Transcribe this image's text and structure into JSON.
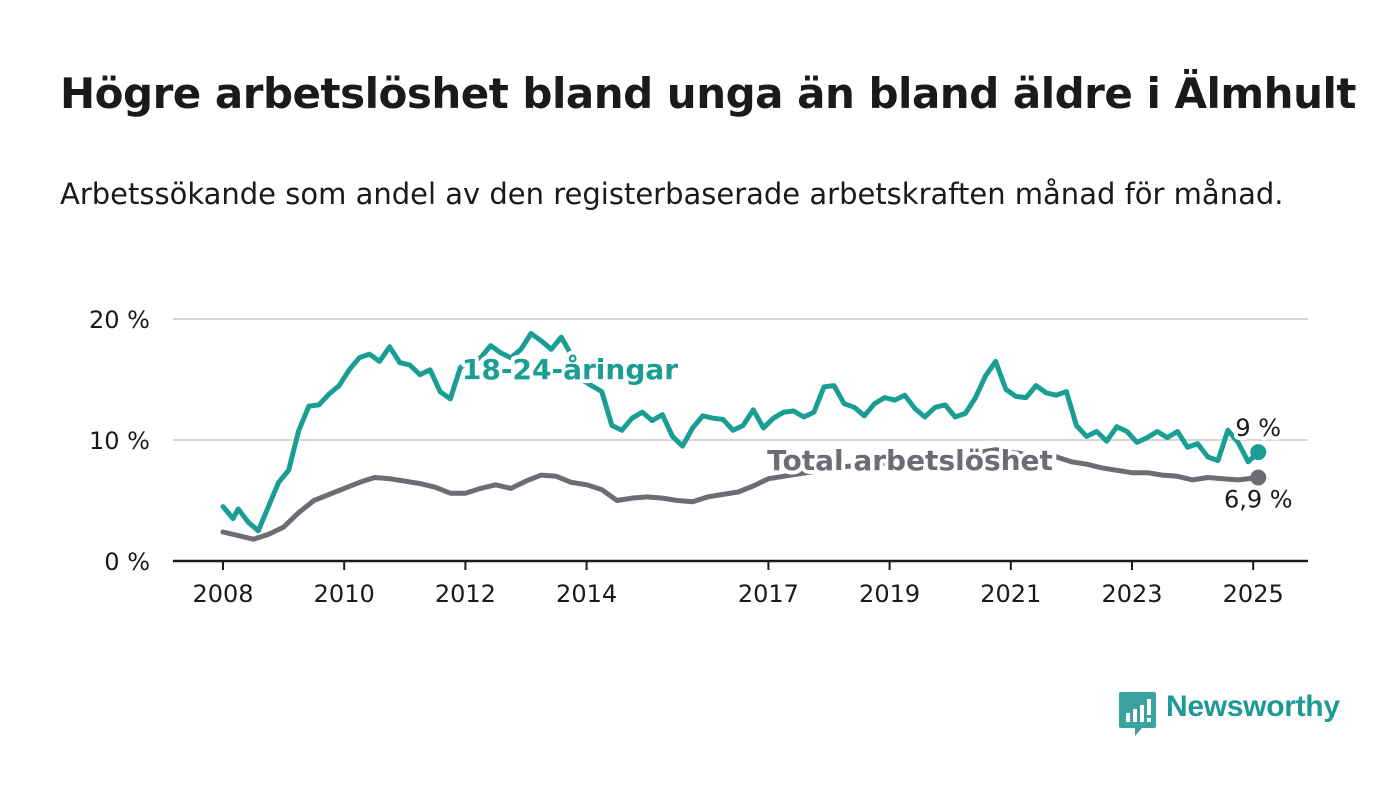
{
  "title": "Högre arbetslöshet bland unga än bland äldre i Älmhult",
  "subtitle": "Arbetssökande som andel av den registerbaserade arbetskraften månad för månad.",
  "logo_text": "Newsworthy",
  "colors": {
    "young": "#1a9e94",
    "total": "#6e6b73",
    "grid": "#d6d6d6",
    "axis": "#1a1a1a",
    "logo": "#1d9a96"
  },
  "chart_data": {
    "type": "line",
    "title": "Högre arbetslöshet bland unga än bland äldre i Älmhult",
    "subtitle": "Arbetssökande som andel av den registerbaserade arbetskraften månad för månad.",
    "xlabel": "",
    "ylabel": "",
    "x_range": [
      "2008-01",
      "2025-03"
    ],
    "ylim": [
      0,
      20
    ],
    "y_ticks": [
      0,
      10,
      20
    ],
    "y_tick_labels": [
      "0 %",
      "10 %",
      "20 %"
    ],
    "x_ticks": [
      2008,
      2010,
      2012,
      2014,
      2017,
      2019,
      2021,
      2023,
      2025
    ],
    "x_tick_labels": [
      "2008",
      "2010",
      "2012",
      "2014",
      "2017",
      "2019",
      "2021",
      "2023",
      "2025"
    ],
    "grid": true,
    "legend": "inline labels",
    "series": [
      {
        "name": "18-24-åringar",
        "end_label": "9 %",
        "points": [
          [
            "2008-01",
            4.5
          ],
          [
            "2008-03",
            3.5
          ],
          [
            "2008-04",
            4.3
          ],
          [
            "2008-06",
            3.2
          ],
          [
            "2008-08",
            2.5
          ],
          [
            "2008-10",
            4.5
          ],
          [
            "2008-12",
            6.5
          ],
          [
            "2009-02",
            7.5
          ],
          [
            "2009-04",
            10.8
          ],
          [
            "2009-06",
            12.8
          ],
          [
            "2009-08",
            12.9
          ],
          [
            "2009-10",
            13.8
          ],
          [
            "2009-12",
            14.5
          ],
          [
            "2010-02",
            15.8
          ],
          [
            "2010-04",
            16.8
          ],
          [
            "2010-06",
            17.1
          ],
          [
            "2010-08",
            16.5
          ],
          [
            "2010-10",
            17.7
          ],
          [
            "2010-12",
            16.4
          ],
          [
            "2011-02",
            16.2
          ],
          [
            "2011-04",
            15.4
          ],
          [
            "2011-06",
            15.8
          ],
          [
            "2011-08",
            14.0
          ],
          [
            "2011-10",
            13.4
          ],
          [
            "2011-12",
            16.0
          ],
          [
            "2012-02",
            16.5
          ],
          [
            "2012-04",
            16.8
          ],
          [
            "2012-06",
            17.8
          ],
          [
            "2012-08",
            17.2
          ],
          [
            "2012-10",
            16.8
          ],
          [
            "2012-12",
            17.5
          ],
          [
            "2013-02",
            18.8
          ],
          [
            "2013-04",
            18.2
          ],
          [
            "2013-06",
            17.5
          ],
          [
            "2013-08",
            18.5
          ],
          [
            "2013-10",
            17.0
          ],
          [
            "2013-12",
            15.0
          ],
          [
            "2014-02",
            14.5
          ],
          [
            "2014-04",
            14.0
          ],
          [
            "2014-06",
            11.2
          ],
          [
            "2014-08",
            10.8
          ],
          [
            "2014-10",
            11.8
          ],
          [
            "2014-12",
            12.3
          ],
          [
            "2015-02",
            11.6
          ],
          [
            "2015-04",
            12.1
          ],
          [
            "2015-06",
            10.3
          ],
          [
            "2015-08",
            9.5
          ],
          [
            "2015-10",
            11.0
          ],
          [
            "2015-12",
            12.0
          ],
          [
            "2016-02",
            11.8
          ],
          [
            "2016-04",
            11.7
          ],
          [
            "2016-06",
            10.8
          ],
          [
            "2016-08",
            11.2
          ],
          [
            "2016-10",
            12.5
          ],
          [
            "2016-12",
            11.0
          ],
          [
            "2017-02",
            11.8
          ],
          [
            "2017-04",
            12.3
          ],
          [
            "2017-06",
            12.4
          ],
          [
            "2017-08",
            11.9
          ],
          [
            "2017-10",
            12.3
          ],
          [
            "2017-12",
            14.4
          ],
          [
            "2018-02",
            14.5
          ],
          [
            "2018-04",
            13.0
          ],
          [
            "2018-06",
            12.7
          ],
          [
            "2018-08",
            12.0
          ],
          [
            "2018-10",
            13.0
          ],
          [
            "2018-12",
            13.5
          ],
          [
            "2019-02",
            13.3
          ],
          [
            "2019-04",
            13.7
          ],
          [
            "2019-06",
            12.6
          ],
          [
            "2019-08",
            11.9
          ],
          [
            "2019-10",
            12.7
          ],
          [
            "2019-12",
            12.9
          ],
          [
            "2020-02",
            11.9
          ],
          [
            "2020-04",
            12.2
          ],
          [
            "2020-06",
            13.5
          ],
          [
            "2020-08",
            15.3
          ],
          [
            "2020-10",
            16.5
          ],
          [
            "2020-12",
            14.2
          ],
          [
            "2021-02",
            13.6
          ],
          [
            "2021-04",
            13.5
          ],
          [
            "2021-06",
            14.5
          ],
          [
            "2021-08",
            13.9
          ],
          [
            "2021-10",
            13.7
          ],
          [
            "2021-12",
            14.0
          ],
          [
            "2022-02",
            11.2
          ],
          [
            "2022-04",
            10.3
          ],
          [
            "2022-06",
            10.7
          ],
          [
            "2022-08",
            9.9
          ],
          [
            "2022-10",
            11.1
          ],
          [
            "2022-12",
            10.7
          ],
          [
            "2023-02",
            9.8
          ],
          [
            "2023-04",
            10.2
          ],
          [
            "2023-06",
            10.7
          ],
          [
            "2023-08",
            10.2
          ],
          [
            "2023-10",
            10.7
          ],
          [
            "2023-12",
            9.4
          ],
          [
            "2024-02",
            9.7
          ],
          [
            "2024-04",
            8.6
          ],
          [
            "2024-06",
            8.3
          ],
          [
            "2024-08",
            10.8
          ],
          [
            "2024-10",
            9.8
          ],
          [
            "2024-12",
            8.2
          ],
          [
            "2025-02",
            9.0
          ]
        ]
      },
      {
        "name": "Total arbetslöshet",
        "end_label": "6,9 %",
        "points": [
          [
            "2008-01",
            2.4
          ],
          [
            "2008-04",
            2.1
          ],
          [
            "2008-07",
            1.8
          ],
          [
            "2008-10",
            2.2
          ],
          [
            "2009-01",
            2.8
          ],
          [
            "2009-04",
            4.0
          ],
          [
            "2009-07",
            5.0
          ],
          [
            "2009-10",
            5.5
          ],
          [
            "2010-01",
            6.0
          ],
          [
            "2010-04",
            6.5
          ],
          [
            "2010-07",
            6.9
          ],
          [
            "2010-10",
            6.8
          ],
          [
            "2011-01",
            6.6
          ],
          [
            "2011-04",
            6.4
          ],
          [
            "2011-07",
            6.1
          ],
          [
            "2011-10",
            5.6
          ],
          [
            "2012-01",
            5.6
          ],
          [
            "2012-04",
            6.0
          ],
          [
            "2012-07",
            6.3
          ],
          [
            "2012-10",
            6.0
          ],
          [
            "2013-01",
            6.6
          ],
          [
            "2013-04",
            7.1
          ],
          [
            "2013-07",
            7.0
          ],
          [
            "2013-10",
            6.5
          ],
          [
            "2014-01",
            6.3
          ],
          [
            "2014-04",
            5.9
          ],
          [
            "2014-07",
            5.0
          ],
          [
            "2014-10",
            5.2
          ],
          [
            "2015-01",
            5.3
          ],
          [
            "2015-04",
            5.2
          ],
          [
            "2015-07",
            5.0
          ],
          [
            "2015-10",
            4.9
          ],
          [
            "2016-01",
            5.3
          ],
          [
            "2016-04",
            5.5
          ],
          [
            "2016-07",
            5.7
          ],
          [
            "2016-10",
            6.2
          ],
          [
            "2017-01",
            6.8
          ],
          [
            "2017-04",
            7.0
          ],
          [
            "2017-07",
            7.2
          ],
          [
            "2017-10",
            7.4
          ],
          [
            "2018-01",
            7.6
          ],
          [
            "2018-04",
            7.8
          ],
          [
            "2018-07",
            7.9
          ],
          [
            "2018-10",
            8.0
          ],
          [
            "2019-01",
            8.1
          ],
          [
            "2019-04",
            8.2
          ],
          [
            "2019-07",
            8.3
          ],
          [
            "2019-10",
            8.4
          ],
          [
            "2020-01",
            8.5
          ],
          [
            "2020-04",
            8.8
          ],
          [
            "2020-07",
            9.0
          ],
          [
            "2020-10",
            9.2
          ],
          [
            "2021-01",
            9.0
          ],
          [
            "2021-04",
            8.8
          ],
          [
            "2021-07",
            8.7
          ],
          [
            "2021-10",
            8.6
          ],
          [
            "2022-01",
            8.2
          ],
          [
            "2022-04",
            8.0
          ],
          [
            "2022-07",
            7.7
          ],
          [
            "2022-10",
            7.5
          ],
          [
            "2023-01",
            7.3
          ],
          [
            "2023-04",
            7.3
          ],
          [
            "2023-07",
            7.1
          ],
          [
            "2023-10",
            7.0
          ],
          [
            "2024-01",
            6.7
          ],
          [
            "2024-04",
            6.9
          ],
          [
            "2024-07",
            6.8
          ],
          [
            "2024-10",
            6.7
          ],
          [
            "2025-02",
            6.9
          ]
        ]
      }
    ]
  }
}
